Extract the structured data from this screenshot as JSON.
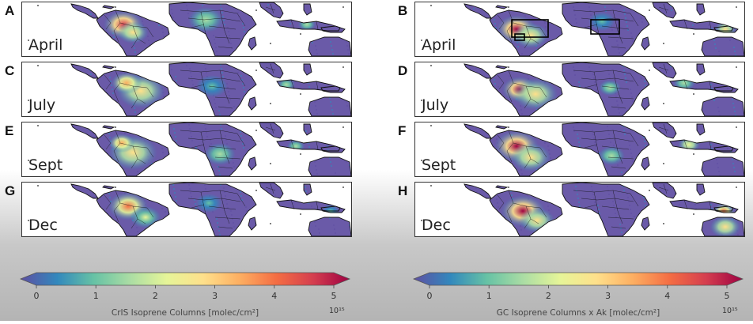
{
  "panels": [
    {
      "letter": "A",
      "month": "April",
      "col": "left",
      "row": 0,
      "source": "cris",
      "month_idx": 0
    },
    {
      "letter": "B",
      "month": "April",
      "col": "right",
      "row": 0,
      "source": "gc",
      "month_idx": 0,
      "boxes": true
    },
    {
      "letter": "C",
      "month": "July",
      "col": "left",
      "row": 1,
      "source": "cris",
      "month_idx": 1
    },
    {
      "letter": "D",
      "month": "July",
      "col": "right",
      "row": 1,
      "source": "gc",
      "month_idx": 1
    },
    {
      "letter": "E",
      "month": "Sept",
      "col": "left",
      "row": 2,
      "source": "cris",
      "month_idx": 2
    },
    {
      "letter": "F",
      "month": "Sept",
      "col": "right",
      "row": 2,
      "source": "gc",
      "month_idx": 2
    },
    {
      "letter": "G",
      "month": "Dec",
      "col": "left",
      "row": 3,
      "source": "cris",
      "month_idx": 3
    },
    {
      "letter": "H",
      "month": "Dec",
      "col": "right",
      "row": 3,
      "source": "gc",
      "month_idx": 3
    }
  ],
  "colorbars": [
    {
      "id": "left",
      "label": "CrIS Isoprene Columns [molec/cm²]",
      "ticks": [
        "0",
        "1",
        "2",
        "3",
        "4",
        "5"
      ],
      "exponent": "10¹⁵"
    },
    {
      "id": "right",
      "label": "GC Isoprene Columns x Ak [molec/cm²]",
      "ticks": [
        "0",
        "1",
        "2",
        "3",
        "4",
        "5"
      ],
      "exponent": "10¹⁵"
    }
  ],
  "colors": {
    "scale": [
      "#5e4fa2",
      "#3288bd",
      "#66c2a5",
      "#abdda4",
      "#e6f598",
      "#fee08b",
      "#fdae61",
      "#f46d43",
      "#d53e4f",
      "#9e0142"
    ],
    "land_low": "#6a5aa8",
    "border": "#111111"
  }
}
